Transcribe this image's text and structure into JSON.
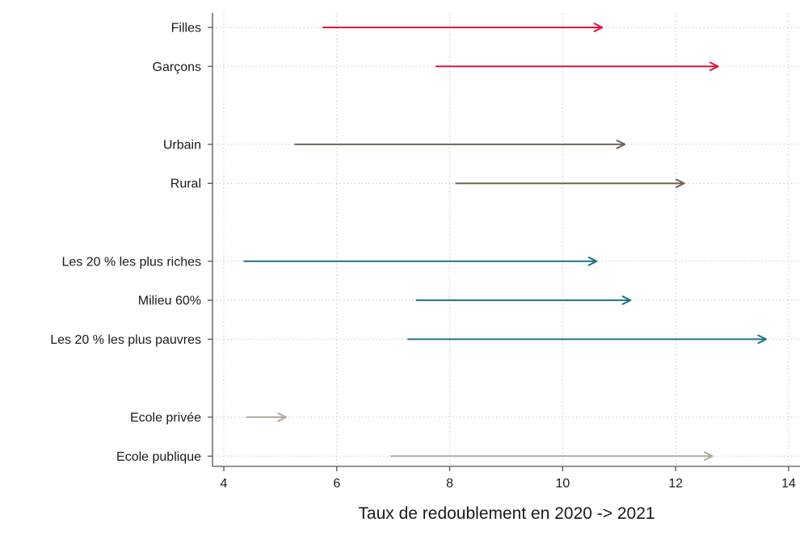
{
  "chart_data": {
    "type": "arrow",
    "xlabel": "Taux de redoublement en 2020 -> 2021",
    "xlim": [
      3.8,
      14.2
    ],
    "xticks": [
      4,
      6,
      8,
      10,
      12,
      14
    ],
    "grid": true,
    "groups": [
      {
        "color": "#e0163f",
        "rows": [
          {
            "label": "Filles",
            "from": 5.75,
            "to": 10.7
          },
          {
            "label": "Garçons",
            "from": 7.75,
            "to": 12.75
          }
        ]
      },
      {
        "color": "#6e6358",
        "rows": [
          {
            "label": "Urbain",
            "from": 5.25,
            "to": 11.1
          },
          {
            "label": "Rural",
            "from": 8.1,
            "to": 12.15
          }
        ]
      },
      {
        "color": "#1d7385",
        "rows": [
          {
            "label": "Les 20 % les plus riches",
            "from": 4.35,
            "to": 10.6
          },
          {
            "label": "Milieu 60%",
            "from": 7.4,
            "to": 11.2
          },
          {
            "label": "Les 20 % les plus pauvres",
            "from": 7.25,
            "to": 13.6
          }
        ]
      },
      {
        "color": "#b3aaa0",
        "rows": [
          {
            "label": "Ecole privée",
            "from": 4.4,
            "to": 5.1
          },
          {
            "label": "Ecole publique",
            "from": 6.95,
            "to": 12.65
          }
        ]
      }
    ]
  }
}
